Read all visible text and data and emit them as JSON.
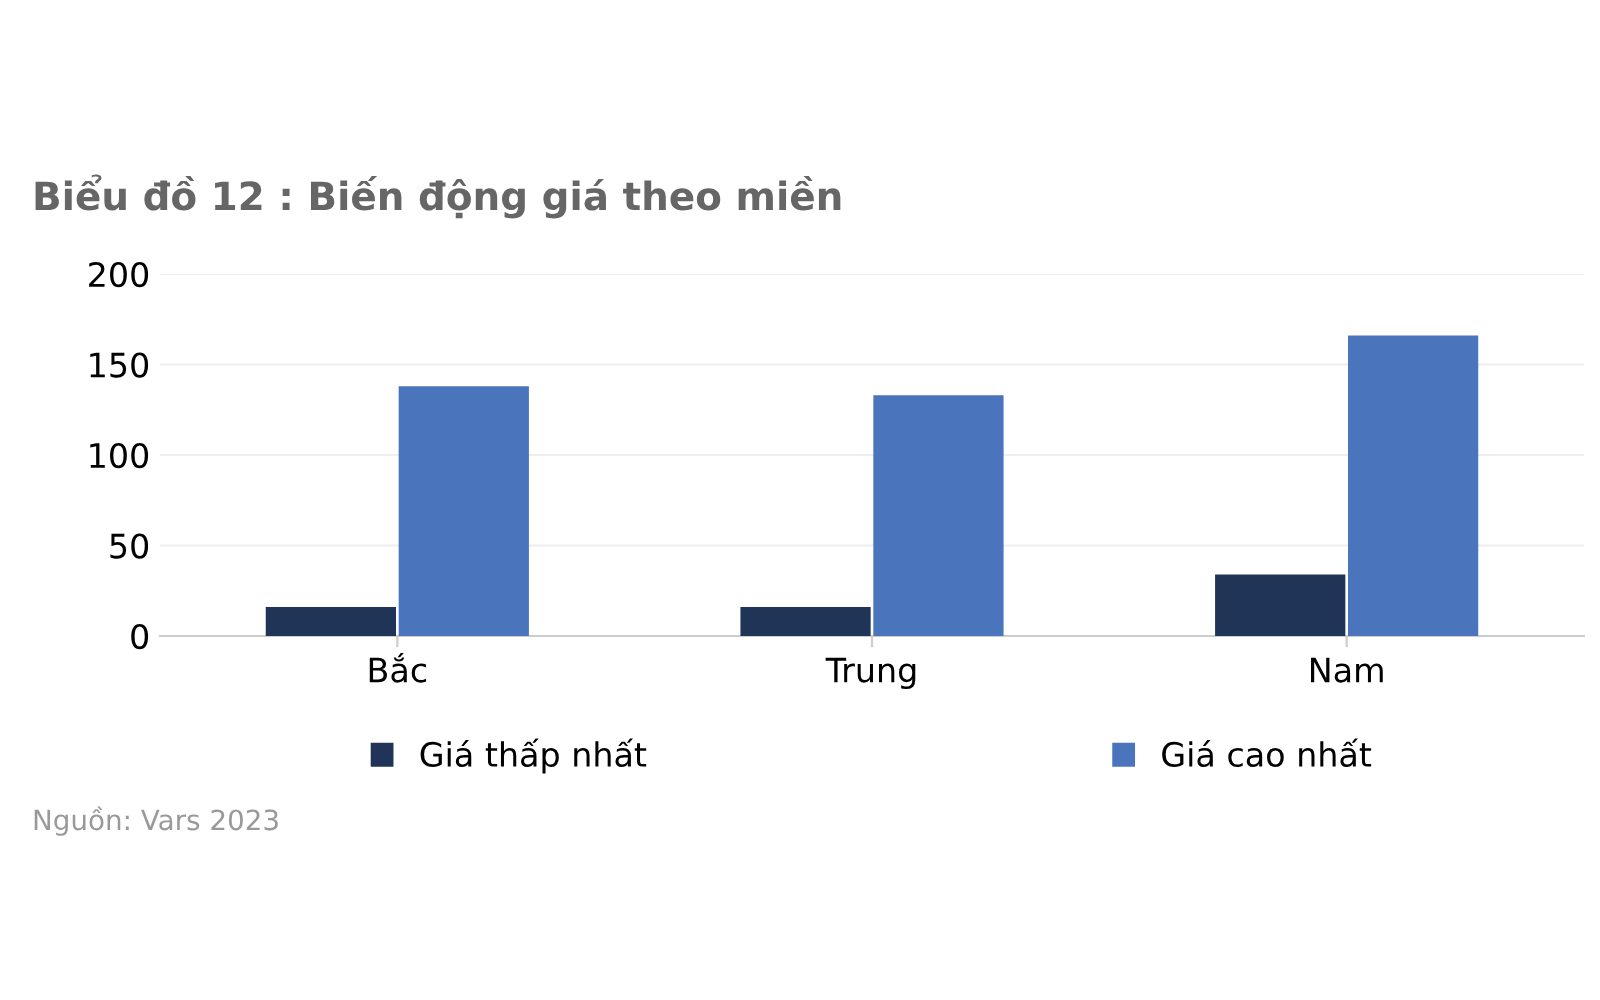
{
  "chart_data": {
    "type": "bar",
    "title": "Biểu đồ 12 : Biến động giá theo miền",
    "categories": [
      "Bắc",
      "Trung",
      "Nam"
    ],
    "series": [
      {
        "name": "Giá thấp nhất",
        "color": "#203457",
        "values": [
          16,
          16,
          34
        ]
      },
      {
        "name": "Giá cao nhất",
        "color": "#4a74bb",
        "values": [
          138,
          133,
          166
        ]
      }
    ],
    "ylim": [
      0,
      200
    ],
    "yticks": [
      0,
      50,
      100,
      150,
      200
    ],
    "grid": "y",
    "legend": "bottom",
    "annotations": [
      "Nguồn: Vars 2023"
    ]
  }
}
